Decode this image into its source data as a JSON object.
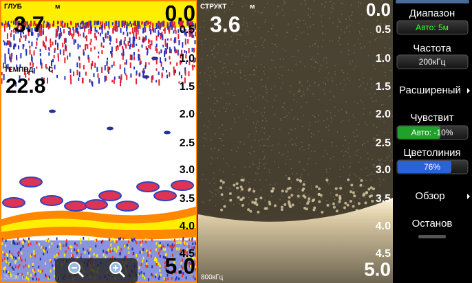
{
  "left": {
    "depth_label": "ГЛУБ",
    "depth_unit": "м",
    "depth": "3.7",
    "top": "0.0",
    "scale": [
      "0.5",
      "1.0",
      "1.5",
      "2.0",
      "2.5",
      "3.0",
      "3.5",
      "4.0",
      "4.5"
    ],
    "bottom": "5.0",
    "temp_label": "ТЕМПВД",
    "temp_unit": "°C",
    "temp": "22.8",
    "freq": "200кГц"
  },
  "right": {
    "depth_label": "СТРУКТ",
    "depth_unit": "м",
    "depth": "3.6",
    "top": "0.0",
    "scale": [
      "0.5",
      "1.0",
      "1.5",
      "2.0",
      "2.5",
      "3.0",
      "3.5",
      "4.0",
      "4.5"
    ],
    "bottom": "5.0",
    "freq": "800кГц"
  },
  "menu": {
    "range_label": "Диапазон",
    "range_value": "Авто: 5м",
    "freq_label": "Частота",
    "freq_value": "200кГц",
    "advanced": "Расширеный",
    "sens_label": "Чувствит",
    "sens_value": "Авто: -10%",
    "color_label": "Цветолиния",
    "color_value": "76%",
    "view": "Обзор",
    "stop": "Останов"
  }
}
